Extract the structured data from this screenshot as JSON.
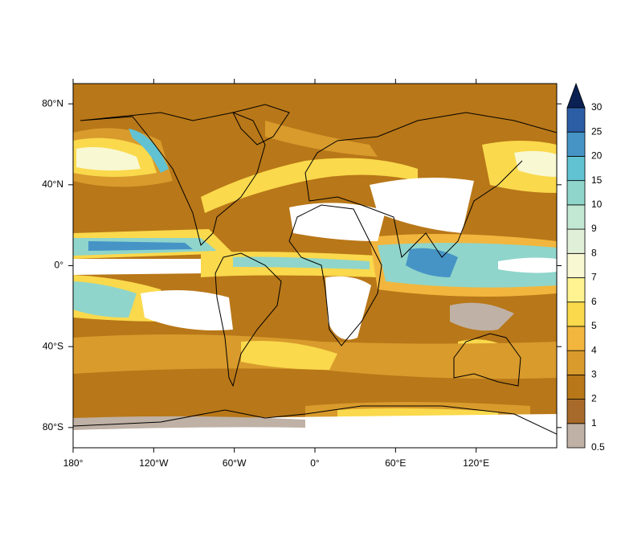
{
  "map": {
    "xlim": [
      -180,
      180
    ],
    "ylim": [
      -90,
      90
    ],
    "xticks": [
      {
        "value": -180,
        "label": "180°"
      },
      {
        "value": -120,
        "label": "120°W"
      },
      {
        "value": -60,
        "label": "60°W"
      },
      {
        "value": 0,
        "label": "0°"
      },
      {
        "value": 60,
        "label": "60°E"
      },
      {
        "value": 120,
        "label": "120°E"
      }
    ],
    "yticks": [
      {
        "value": 80,
        "label": "80°N"
      },
      {
        "value": 40,
        "label": "40°N"
      },
      {
        "value": 0,
        "label": "0°"
      },
      {
        "value": -40,
        "label": "40°S"
      },
      {
        "value": -80,
        "label": "80°S"
      }
    ]
  },
  "colorbar": {
    "levels": [
      0.5,
      1,
      2,
      3,
      4,
      5,
      6,
      7,
      8,
      9,
      10,
      15,
      20,
      25,
      30
    ],
    "colors": [
      "#bfb1a5",
      "#a86a2a",
      "#b87718",
      "#d89b2c",
      "#f2b63e",
      "#fad94c",
      "#fef390",
      "#f8f8d2",
      "#e0f0d8",
      "#c2e7d2",
      "#8fd5cb",
      "#61c2d2",
      "#4694c6",
      "#2c5ea6",
      "#0b2153"
    ]
  }
}
